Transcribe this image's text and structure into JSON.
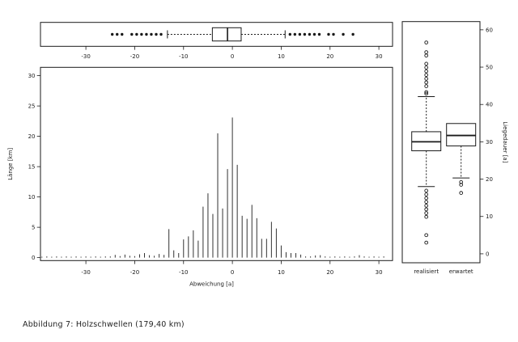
{
  "caption": "Abbildung 7: Holzschwellen (179,40 km)",
  "colors": {
    "foreground": "#1a1a1a",
    "bar": "#333333",
    "background": "#ffffff"
  },
  "chart_data": [
    {
      "type": "boxplot",
      "panel": "top",
      "orientation": "horizontal",
      "xlim": [
        -39.3,
        32.8
      ],
      "xticks": [
        -30,
        -20,
        -10,
        0,
        10,
        20,
        30
      ],
      "box": {
        "q1": -4.1,
        "median": -1.0,
        "q3": 1.8,
        "whisker_low": -13.3,
        "whisker_high": 10.8,
        "outliers_low": [
          -24.6,
          -23.6,
          -22.6,
          -20.6,
          -19.6,
          -18.6,
          -17.6,
          -16.6,
          -15.6,
          -14.6
        ],
        "outliers_high": [
          11.8,
          12.8,
          13.8,
          14.8,
          15.8,
          16.8,
          17.8,
          19.7,
          20.7,
          22.7,
          24.7
        ]
      }
    },
    {
      "type": "bar",
      "panel": "main",
      "xlabel": "Abweichung [a]",
      "ylabel": "Länge [km]",
      "xlim": [
        -39.3,
        32.8
      ],
      "ylim": [
        -0.49,
        31.37
      ],
      "xticks": [
        -30,
        -20,
        -10,
        0,
        10,
        20,
        30
      ],
      "yticks": [
        0,
        5,
        10,
        15,
        20,
        25,
        30
      ],
      "x": [
        -39,
        -38,
        -37,
        -36,
        -35,
        -34,
        -33,
        -32,
        -31,
        -30,
        -29,
        -28,
        -27,
        -26,
        -25,
        -24,
        -23,
        -22,
        -21,
        -20,
        -19,
        -18,
        -17,
        -16,
        -15,
        -14,
        -13,
        -12,
        -11,
        -10,
        -9,
        -8,
        -7,
        -6,
        -5,
        -4,
        -3,
        -2,
        -1,
        0,
        1,
        2,
        3,
        4,
        5,
        6,
        7,
        8,
        9,
        10,
        11,
        12,
        13,
        14,
        15,
        16,
        17,
        18,
        19,
        20,
        21,
        22,
        23,
        24,
        25,
        26,
        27,
        28,
        29,
        30,
        31
      ],
      "values": [
        0.15,
        0.2,
        0.15,
        0.2,
        0.15,
        0.2,
        0.15,
        0.2,
        0.15,
        0.2,
        0.15,
        0.2,
        0.15,
        0.2,
        0.2,
        0.45,
        0.25,
        0.5,
        0.3,
        0.25,
        0.55,
        0.75,
        0.4,
        0.3,
        0.6,
        0.45,
        4.7,
        1.2,
        0.75,
        3.0,
        3.5,
        4.5,
        2.8,
        8.4,
        10.6,
        7.2,
        20.5,
        8.1,
        14.6,
        23.1,
        15.3,
        6.9,
        6.4,
        8.7,
        6.5,
        3.1,
        3.1,
        5.9,
        4.8,
        2.0,
        0.9,
        0.75,
        0.75,
        0.5,
        0.2,
        0.2,
        0.35,
        0.4,
        0.2,
        0.15,
        0.2,
        0.15,
        0.2,
        0.15,
        0.2,
        0.4,
        0.2,
        0.15,
        0.2,
        0.15,
        0.2
      ]
    },
    {
      "type": "boxplot",
      "panel": "right",
      "orientation": "vertical",
      "ylabel_right": "Liegedauer [a]",
      "ylim": [
        -2.4,
        62.2
      ],
      "yticks": [
        0,
        10,
        20,
        30,
        40,
        50,
        60
      ],
      "groups": [
        {
          "label": "realisiert",
          "q1": 27.6,
          "median": 30.0,
          "q3": 32.7,
          "whisker_low": 18.0,
          "whisker_high": 42.1,
          "outliers_high": [
            56.6,
            54.0,
            53.1,
            50.9,
            49.9,
            48.9,
            47.9,
            46.9,
            45.9,
            44.9,
            43.3,
            42.9
          ],
          "outliers_low": [
            16.9,
            15.9,
            14.9,
            13.9,
            12.9,
            11.9,
            10.9,
            9.9,
            5.0,
            3.0
          ]
        },
        {
          "label": "erwartet",
          "q1": 28.9,
          "median": 31.7,
          "q3": 34.9,
          "whisker_low": 20.3,
          "whisker_high": 34.9,
          "outliers_high": [],
          "outliers_low": [
            19.2,
            18.5,
            16.3
          ]
        }
      ]
    }
  ]
}
